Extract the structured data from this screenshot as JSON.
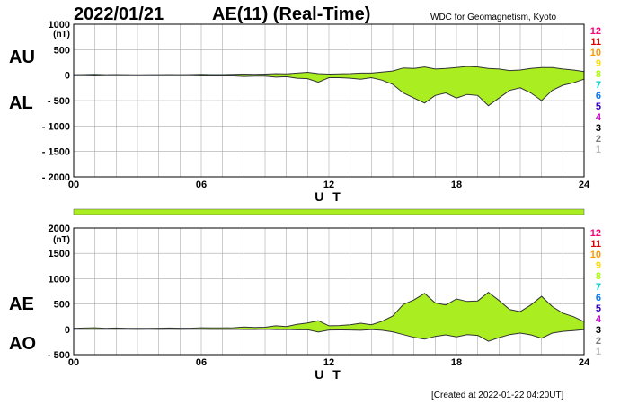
{
  "header": {
    "date": "2022/01/21",
    "title": "AE(11) (Real-Time)",
    "source": "WDC for Geomagnetism, Kyoto",
    "created": "[Created at 2022-01-22 04:20UT]"
  },
  "level_scale": {
    "labels": [
      "12",
      "11",
      "10",
      "9",
      "8",
      "7",
      "6",
      "5",
      "4",
      "3",
      "2",
      "1"
    ],
    "colors": [
      "#ff0077",
      "#dd0000",
      "#ff9900",
      "#ffdd00",
      "#aaff00",
      "#00cccc",
      "#0077ff",
      "#3300cc",
      "#cc00cc",
      "#000000",
      "#777777",
      "#bbbbbb"
    ]
  },
  "colors": {
    "fill": "#aaee22",
    "line": "#333333",
    "grid": "#aaaaaa"
  },
  "chart_data": [
    {
      "type": "area",
      "panel": "AU/AL",
      "side_labels": {
        "upper": "AU",
        "lower": "AL"
      },
      "unit": "(nT)",
      "ylim": [
        -2000,
        1000
      ],
      "yticks": [
        1000,
        500,
        0,
        -500,
        -1000,
        -1500,
        -2000
      ],
      "ytick_labels": [
        "1000",
        "500",
        "0",
        "- 500",
        "- 1000",
        "- 1500",
        "- 2000"
      ],
      "xlim": [
        0,
        24
      ],
      "xticks": [
        0,
        6,
        12,
        18,
        24
      ],
      "xtick_labels": [
        "00",
        "06",
        "12",
        "18",
        "24"
      ],
      "xlabel": "U T",
      "x": [
        0,
        0.5,
        1,
        1.5,
        2,
        2.5,
        3,
        3.5,
        4,
        4.5,
        5,
        5.5,
        6,
        6.5,
        7,
        7.5,
        8,
        8.5,
        9,
        9.5,
        10,
        10.5,
        11,
        11.5,
        12,
        12.5,
        13,
        13.5,
        14,
        14.5,
        15,
        15.5,
        16,
        16.5,
        17,
        17.5,
        18,
        18.5,
        19,
        19.5,
        20,
        20.5,
        21,
        21.5,
        22,
        22.5,
        23,
        23.5,
        24
      ],
      "series": [
        {
          "name": "AU",
          "values": [
            10,
            12,
            15,
            10,
            12,
            10,
            8,
            10,
            10,
            12,
            10,
            12,
            15,
            12,
            12,
            15,
            20,
            15,
            20,
            30,
            25,
            40,
            55,
            30,
            20,
            25,
            30,
            40,
            40,
            60,
            80,
            140,
            130,
            160,
            120,
            130,
            150,
            170,
            160,
            130,
            120,
            90,
            100,
            130,
            150,
            150,
            120,
            100,
            70
          ]
        },
        {
          "name": "AL",
          "values": [
            -10,
            -12,
            -15,
            -10,
            -12,
            -10,
            -10,
            -10,
            -12,
            -12,
            -12,
            -10,
            -15,
            -15,
            -15,
            -15,
            -25,
            -20,
            -20,
            -40,
            -30,
            -60,
            -70,
            -140,
            -50,
            -50,
            -60,
            -80,
            -50,
            -100,
            -180,
            -350,
            -450,
            -550,
            -400,
            -350,
            -450,
            -380,
            -400,
            -600,
            -450,
            -300,
            -250,
            -350,
            -500,
            -300,
            -200,
            -150,
            -80
          ]
        }
      ]
    },
    {
      "type": "area",
      "panel": "AE/AO",
      "side_labels": {
        "upper": "AE",
        "lower": "AO"
      },
      "unit": "(nT)",
      "ylim": [
        -500,
        2000
      ],
      "yticks": [
        2000,
        1500,
        1000,
        500,
        0,
        -500
      ],
      "ytick_labels": [
        "2000",
        "1500",
        "1000",
        "500",
        "0",
        "- 500"
      ],
      "xlim": [
        0,
        24
      ],
      "xticks": [
        0,
        6,
        12,
        18,
        24
      ],
      "xtick_labels": [
        "00",
        "06",
        "12",
        "18",
        "24"
      ],
      "xlabel": "U T",
      "x": [
        0,
        0.5,
        1,
        1.5,
        2,
        2.5,
        3,
        3.5,
        4,
        4.5,
        5,
        5.5,
        6,
        6.5,
        7,
        7.5,
        8,
        8.5,
        9,
        9.5,
        10,
        10.5,
        11,
        11.5,
        12,
        12.5,
        13,
        13.5,
        14,
        14.5,
        15,
        15.5,
        16,
        16.5,
        17,
        17.5,
        18,
        18.5,
        19,
        19.5,
        20,
        20.5,
        21,
        21.5,
        22,
        22.5,
        23,
        23.5,
        24
      ],
      "series": [
        {
          "name": "AE",
          "values": [
            20,
            24,
            30,
            20,
            24,
            20,
            18,
            20,
            22,
            24,
            22,
            22,
            30,
            27,
            27,
            30,
            45,
            35,
            40,
            70,
            55,
            100,
            125,
            170,
            70,
            75,
            90,
            120,
            90,
            160,
            260,
            490,
            580,
            710,
            520,
            480,
            600,
            550,
            560,
            730,
            570,
            390,
            350,
            480,
            650,
            450,
            320,
            250,
            150
          ]
        },
        {
          "name": "AO",
          "values": [
            0,
            0,
            0,
            0,
            0,
            0,
            -1,
            0,
            -1,
            0,
            -1,
            1,
            0,
            -1,
            -1,
            0,
            -3,
            -3,
            0,
            -5,
            -3,
            -10,
            -8,
            -55,
            -15,
            -13,
            -15,
            -20,
            -5,
            -20,
            -50,
            -105,
            -160,
            -195,
            -140,
            -110,
            -150,
            -105,
            -120,
            -235,
            -165,
            -105,
            -75,
            -110,
            -175,
            -75,
            -40,
            -25,
            -5
          ]
        }
      ]
    }
  ]
}
